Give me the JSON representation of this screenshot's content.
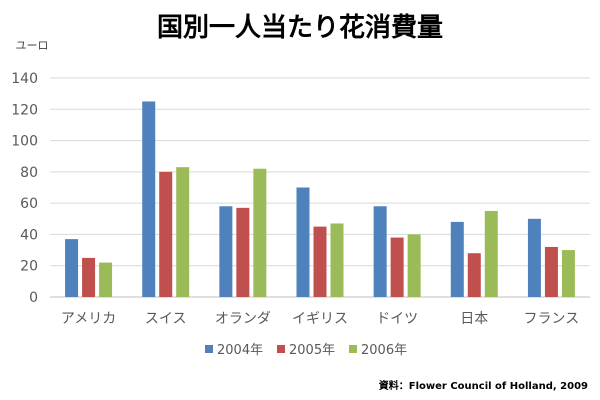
{
  "chart_data": {
    "type": "bar",
    "title": "国別一人当たり花消費量",
    "ylabel": "ユーロ",
    "xlabel": "",
    "ylim": [
      0,
      140
    ],
    "yticks": [
      0,
      20,
      40,
      60,
      80,
      100,
      120,
      140
    ],
    "grid": true,
    "legend_position": "bottom",
    "categories": [
      "アメリカ",
      "スイス",
      "オランダ",
      "イギリス",
      "ドイツ",
      "日本",
      "フランス"
    ],
    "series": [
      {
        "name": "2004年",
        "color": "#4F81BD",
        "values": [
          37,
          125,
          58,
          70,
          58,
          48,
          50
        ]
      },
      {
        "name": "2005年",
        "color": "#C0504D",
        "values": [
          25,
          80,
          57,
          45,
          38,
          28,
          32
        ]
      },
      {
        "name": "2006年",
        "color": "#9BBB59",
        "values": [
          22,
          83,
          82,
          47,
          40,
          55,
          30
        ]
      }
    ],
    "source": "資料：Flower Council of Holland, 2009"
  }
}
